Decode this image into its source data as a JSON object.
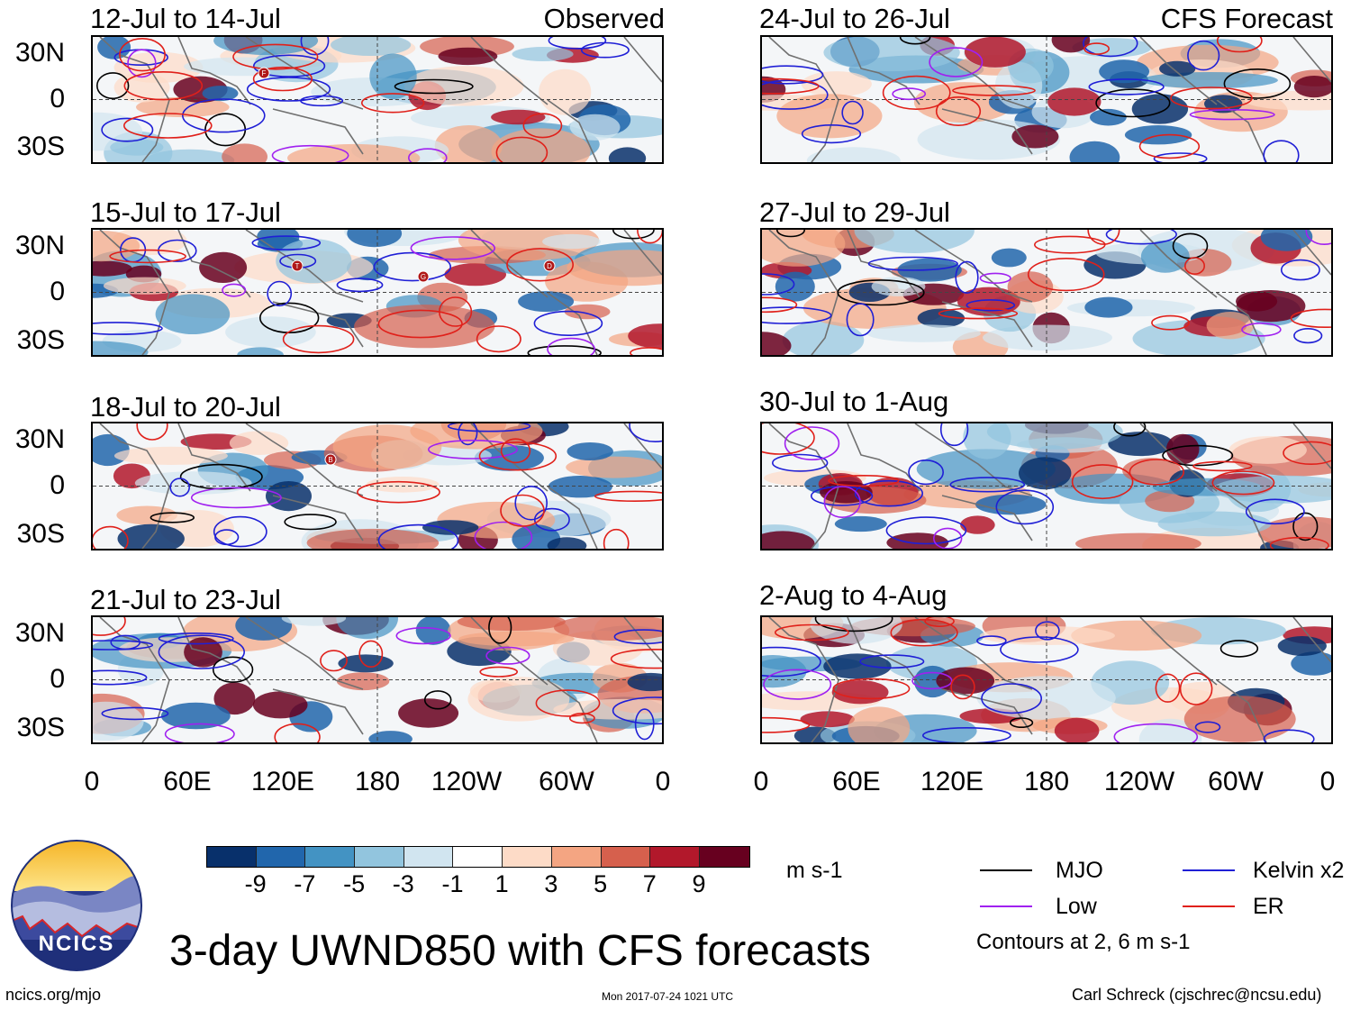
{
  "panels": {
    "left": [
      {
        "title": "12-Jul to 14-Jul",
        "right_label": "Observed"
      },
      {
        "title": "15-Jul to 17-Jul",
        "right_label": ""
      },
      {
        "title": "18-Jul to 20-Jul",
        "right_label": ""
      },
      {
        "title": "21-Jul to 23-Jul",
        "right_label": ""
      }
    ],
    "right": [
      {
        "title": "24-Jul to 26-Jul",
        "right_label": "CFS Forecast"
      },
      {
        "title": "27-Jul to 29-Jul",
        "right_label": ""
      },
      {
        "title": "30-Jul to 1-Aug",
        "right_label": ""
      },
      {
        "title": "2-Aug to 4-Aug",
        "right_label": ""
      }
    ]
  },
  "axes": {
    "lat_labels": [
      "30N",
      "0",
      "30S"
    ],
    "lon_labels": [
      "0",
      "60E",
      "120E",
      "180",
      "120W",
      "60W",
      "0"
    ]
  },
  "colorbar": {
    "colors": [
      "#08306b",
      "#2166ac",
      "#4393c3",
      "#92c5de",
      "#d1e5f0",
      "#ffffff",
      "#fddbc7",
      "#f4a582",
      "#d6604d",
      "#b2182b",
      "#67001f"
    ],
    "labels": [
      "-9",
      "-7",
      "-5",
      "-3",
      "-1",
      "1",
      "3",
      "5",
      "7",
      "9"
    ],
    "units": "m s-1"
  },
  "legend": {
    "items": [
      {
        "label": "MJO",
        "color": "#000000"
      },
      {
        "label": "Kelvin x2",
        "color": "#1f1fd6"
      },
      {
        "label": "Low",
        "color": "#a020f0"
      },
      {
        "label": "ER",
        "color": "#e0201a"
      }
    ],
    "note": "Contours at 2, 6 m s-1"
  },
  "title": "3-day UWND850 with CFS forecasts",
  "logo_text": "NCICS",
  "footer": {
    "left": "ncics.org/mjo",
    "center": "Mon 2017-07-24 1021 UTC",
    "right": "Carl Schreck (cjschrec@ncsu.edu)"
  },
  "storm_markers": [
    {
      "panel": "left-0",
      "label": "F"
    },
    {
      "panel": "left-1",
      "label": "T"
    },
    {
      "panel": "left-1",
      "label": "G"
    },
    {
      "panel": "left-1",
      "label": "D"
    },
    {
      "panel": "left-2",
      "label": "B"
    }
  ]
}
